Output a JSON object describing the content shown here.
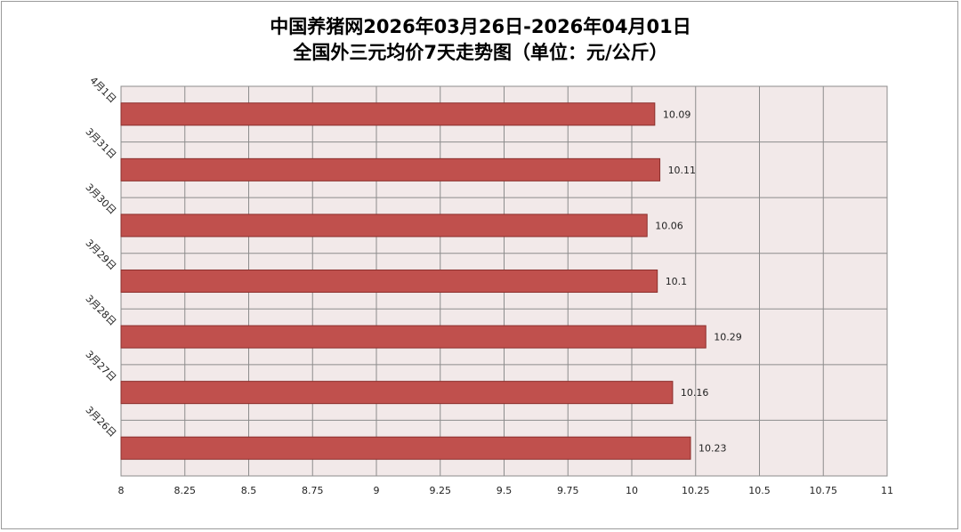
{
  "chart_data": {
    "type": "bar",
    "orientation": "horizontal",
    "title": "中国养猪网2026年03月26日-2026年04月01日",
    "subtitle": "全国外三元均价7天走势图（单位：元/公斤）",
    "categories": [
      "4月1日",
      "3月31日",
      "3月30日",
      "3月29日",
      "3月28日",
      "3月27日",
      "3月26日"
    ],
    "values": [
      10.09,
      10.11,
      10.06,
      10.1,
      10.29,
      10.16,
      10.23
    ],
    "value_labels": [
      "10.09",
      "10.11",
      "10.06",
      "10.1",
      "10.29",
      "10.16",
      "10.23"
    ],
    "xlim": [
      8,
      11
    ],
    "x_ticks": [
      "8",
      "8.25",
      "8.5",
      "8.75",
      "9",
      "9.25",
      "9.5",
      "9.75",
      "10",
      "10.25",
      "10.5",
      "10.75",
      "11"
    ],
    "grid": true,
    "legend": "none",
    "colors": {
      "bar": "#c0504d",
      "bar_edge": "#8b2f2c",
      "plot_bg": "#f2e9e9",
      "grid": "#8c8c8c"
    }
  }
}
